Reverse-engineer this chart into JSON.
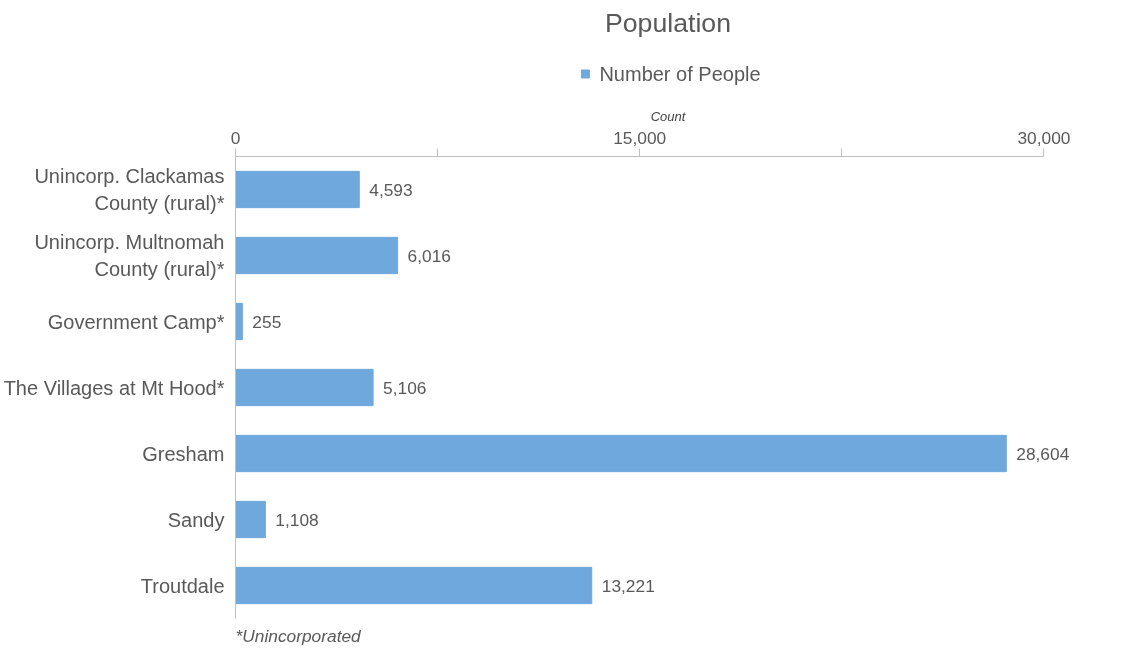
{
  "chart_data": {
    "type": "bar",
    "orientation": "horizontal",
    "title": "Population",
    "xlabel": "Count",
    "categories": [
      "Unincorp. Clackamas County (rural)*",
      "Unincorp. Multnomah County (rural)*",
      "Government Camp*",
      "The Villages at Mt Hood*",
      "Gresham",
      "Sandy",
      "Troutdale"
    ],
    "series": [
      {
        "name": "Number of People",
        "color": "#6fa8dc",
        "values": [
          4593,
          6016,
          255,
          5106,
          28604,
          1108,
          13221
        ]
      }
    ],
    "value_labels": [
      "4,593",
      "6,016",
      "255",
      "5,106",
      "28,604",
      "1,108",
      "13,221"
    ],
    "xlim": [
      0,
      30000
    ],
    "xticks": [
      0,
      {
        "value": 7500,
        "label": null
      },
      {
        "value": 15000,
        "label": "15,000"
      },
      {
        "value": 22500,
        "label": null
      },
      {
        "value": 30000,
        "label": "30,000"
      }
    ],
    "grid": false,
    "legend": "top",
    "annotations": [
      "*Unincorporated"
    ]
  }
}
